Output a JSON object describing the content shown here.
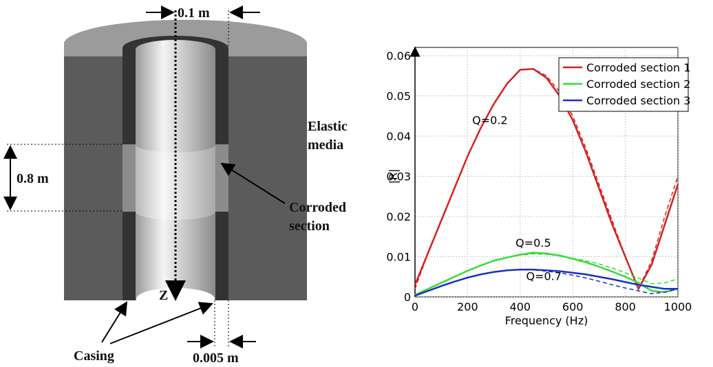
{
  "diagram": {
    "labels": {
      "diameter": "0.1 m",
      "medium_1": "Elastic",
      "medium_2": "media",
      "length": "0.8 m",
      "corroded_1": "Corroded",
      "corroded_2": "section",
      "axis": "Z",
      "casing": "Casing",
      "thickness": "0.005 m"
    }
  },
  "chart_data": {
    "type": "line",
    "xlabel": "Frequency (Hz)",
    "ylabel": "|R|",
    "x": [
      0,
      50,
      100,
      150,
      200,
      250,
      300,
      350,
      400,
      450,
      500,
      550,
      600,
      650,
      700,
      750,
      800,
      850,
      900,
      950,
      1000
    ],
    "series": [
      {
        "name": "Corroded section 1",
        "color": "#d62020",
        "values": [
          0.003,
          0.011,
          0.019,
          0.027,
          0.035,
          0.042,
          0.048,
          0.053,
          0.0565,
          0.0567,
          0.0545,
          0.05,
          0.044,
          0.036,
          0.027,
          0.018,
          0.01,
          0.002,
          0.008,
          0.018,
          0.028
        ],
        "dashed_values": [
          0.002,
          0.011,
          0.019,
          0.027,
          0.035,
          0.042,
          0.048,
          0.053,
          0.0565,
          0.0567,
          0.055,
          0.051,
          0.045,
          0.037,
          0.028,
          0.019,
          0.01,
          0.002,
          0.009,
          0.02,
          0.03
        ]
      },
      {
        "name": "Corroded section 2",
        "color": "#33dd33",
        "values": [
          0.0005,
          0.002,
          0.0035,
          0.005,
          0.0065,
          0.0078,
          0.009,
          0.0098,
          0.0105,
          0.011,
          0.0108,
          0.0103,
          0.0095,
          0.0086,
          0.0075,
          0.0063,
          0.005,
          0.0035,
          0.0015,
          0.0012,
          0.002
        ],
        "dashed_values": [
          0.0005,
          0.002,
          0.0035,
          0.005,
          0.0065,
          0.0078,
          0.009,
          0.0098,
          0.0104,
          0.0107,
          0.0106,
          0.0102,
          0.0096,
          0.009,
          0.0082,
          0.0072,
          0.006,
          0.0047,
          0.0033,
          0.0035,
          0.0045
        ]
      },
      {
        "name": "Corroded section 3",
        "color": "#1a2fbf",
        "values": [
          0.0003,
          0.0015,
          0.0027,
          0.0038,
          0.0048,
          0.0056,
          0.0062,
          0.0066,
          0.0068,
          0.0068,
          0.0066,
          0.0064,
          0.006,
          0.0056,
          0.005,
          0.0044,
          0.0037,
          0.003,
          0.0025,
          0.002,
          0.002
        ],
        "dashed_values": [
          0.0003,
          0.0015,
          0.0027,
          0.0038,
          0.0048,
          0.0056,
          0.0062,
          0.0066,
          0.0068,
          0.0067,
          0.0064,
          0.006,
          0.0054,
          0.0047,
          0.0039,
          0.003,
          0.0022,
          0.0015,
          0.0008,
          0.0012,
          0.002
        ]
      }
    ],
    "annotations": [
      "Q=0.2",
      "Q=0.5",
      "Q=0.7"
    ],
    "xlim": [
      0,
      1000
    ],
    "xticks": [
      0,
      200,
      400,
      600,
      800,
      1000
    ],
    "ylim": [
      0,
      0.06
    ],
    "yticks": [
      0,
      0.01,
      0.02,
      0.03,
      0.04,
      0.05,
      0.06
    ],
    "grid": true,
    "legend": "upper right"
  }
}
